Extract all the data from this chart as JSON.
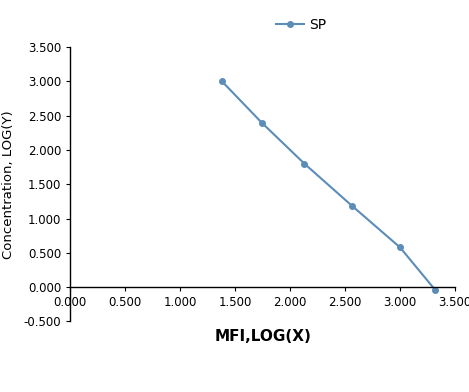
{
  "x_values": [
    1.38,
    1.74,
    2.13,
    2.56,
    3.0,
    3.32
  ],
  "y_values": [
    3.0,
    2.4,
    1.8,
    1.19,
    0.58,
    -0.04
  ],
  "line_color": "#5b8db8",
  "marker": "o",
  "marker_size": 4,
  "line_width": 1.5,
  "xlabel": "MFI,LOG(X)",
  "ylabel": "Concentration, LOG(Y)",
  "xlim": [
    0.0,
    3.5
  ],
  "ylim": [
    -0.5,
    3.5
  ],
  "xticks": [
    0.0,
    0.5,
    1.0,
    1.5,
    2.0,
    2.5,
    3.0,
    3.5
  ],
  "yticks": [
    -0.5,
    0.0,
    0.5,
    1.0,
    1.5,
    2.0,
    2.5,
    3.0,
    3.5
  ],
  "legend_label": "SP",
  "background_color": "#ffffff",
  "xlabel_fontsize": 11,
  "ylabel_fontsize": 9.5,
  "tick_fontsize": 8.5,
  "legend_fontsize": 10
}
